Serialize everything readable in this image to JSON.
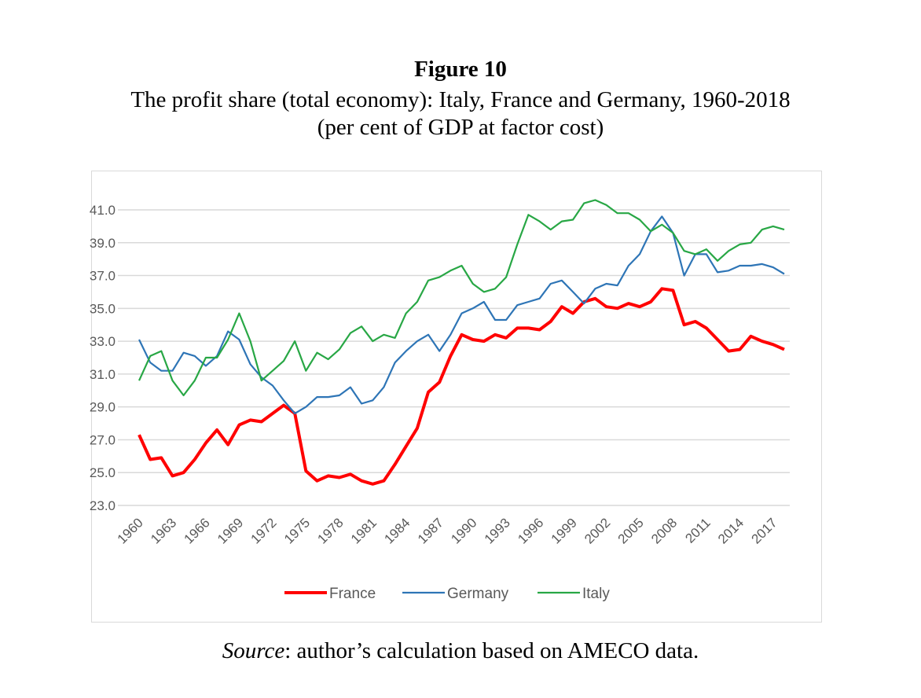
{
  "figure_label": "Figure 10",
  "subtitle_line1": "The profit share (total economy): Italy, France and Germany, 1960-2018",
  "subtitle_line2": "(per cent of GDP at factor cost)",
  "source_label": "Source",
  "source_text": ": author’s calculation based on AMECO data.",
  "chart_data": {
    "type": "line",
    "title": "The profit share (total economy): Italy, France and Germany, 1960-2018",
    "xlabel": "",
    "ylabel": "per cent of GDP at factor cost",
    "ylim": [
      23.0,
      41.0
    ],
    "yticks": [
      "23.0",
      "25.0",
      "27.0",
      "29.0",
      "31.0",
      "33.0",
      "35.0",
      "37.0",
      "39.0",
      "41.0"
    ],
    "xticks": [
      "1960",
      "1963",
      "1966",
      "1969",
      "1972",
      "1975",
      "1978",
      "1981",
      "1984",
      "1987",
      "1990",
      "1993",
      "1996",
      "1999",
      "2002",
      "2005",
      "2008",
      "2011",
      "2014",
      "2017"
    ],
    "grid": true,
    "legend_position": "bottom",
    "x": [
      1960,
      1961,
      1962,
      1963,
      1964,
      1965,
      1966,
      1967,
      1968,
      1969,
      1970,
      1971,
      1972,
      1973,
      1974,
      1975,
      1976,
      1977,
      1978,
      1979,
      1980,
      1981,
      1982,
      1983,
      1984,
      1985,
      1986,
      1987,
      1988,
      1989,
      1990,
      1991,
      1992,
      1993,
      1994,
      1995,
      1996,
      1997,
      1998,
      1999,
      2000,
      2001,
      2002,
      2003,
      2004,
      2005,
      2006,
      2007,
      2008,
      2009,
      2010,
      2011,
      2012,
      2013,
      2014,
      2015,
      2016,
      2017,
      2018
    ],
    "series": [
      {
        "name": "France",
        "color": "#ff0000",
        "values": [
          27.3,
          25.8,
          25.9,
          24.8,
          25.0,
          25.8,
          26.8,
          27.6,
          26.7,
          27.9,
          28.2,
          28.1,
          28.6,
          29.1,
          28.6,
          25.1,
          24.5,
          24.8,
          24.7,
          24.9,
          24.5,
          24.3,
          24.5,
          25.5,
          26.6,
          27.7,
          29.9,
          30.5,
          32.1,
          33.4,
          33.1,
          33.0,
          33.4,
          33.2,
          33.8,
          33.8,
          33.7,
          34.2,
          35.1,
          34.7,
          35.4,
          35.6,
          35.1,
          35.0,
          35.3,
          35.1,
          35.4,
          36.2,
          36.1,
          34.0,
          34.2,
          33.8,
          33.1,
          32.4,
          32.5,
          33.3,
          33.0,
          32.8,
          32.5
        ]
      },
      {
        "name": "Germany",
        "color": "#2e75b6",
        "values": [
          33.1,
          31.7,
          31.2,
          31.2,
          32.3,
          32.1,
          31.5,
          32.1,
          33.6,
          33.1,
          31.6,
          30.8,
          30.3,
          29.4,
          28.6,
          29.0,
          29.6,
          29.6,
          29.7,
          30.2,
          29.2,
          29.4,
          30.2,
          31.7,
          32.4,
          33.0,
          33.4,
          32.4,
          33.4,
          34.7,
          35.0,
          35.4,
          34.3,
          34.3,
          35.2,
          35.4,
          35.6,
          36.5,
          36.7,
          36.0,
          35.3,
          36.2,
          36.5,
          36.4,
          37.6,
          38.3,
          39.7,
          40.6,
          39.6,
          37.0,
          38.3,
          38.3,
          37.2,
          37.3,
          37.6,
          37.6,
          37.7,
          37.5,
          37.1
        ]
      },
      {
        "name": "Italy",
        "color": "#28a745",
        "values": [
          30.6,
          32.1,
          32.4,
          30.6,
          29.7,
          30.6,
          32.0,
          32.0,
          33.1,
          34.7,
          33.0,
          30.6,
          31.2,
          31.8,
          33.0,
          31.2,
          32.3,
          31.9,
          32.5,
          33.5,
          33.9,
          33.0,
          33.4,
          33.2,
          34.7,
          35.4,
          36.7,
          36.9,
          37.3,
          37.6,
          36.5,
          36.0,
          36.2,
          36.9,
          38.9,
          40.7,
          40.3,
          39.8,
          40.3,
          40.4,
          41.4,
          41.6,
          41.3,
          40.8,
          40.8,
          40.4,
          39.7,
          40.1,
          39.6,
          38.5,
          38.3,
          38.6,
          37.9,
          38.5,
          38.9,
          39.0,
          39.8,
          40.0,
          39.8
        ]
      }
    ]
  }
}
